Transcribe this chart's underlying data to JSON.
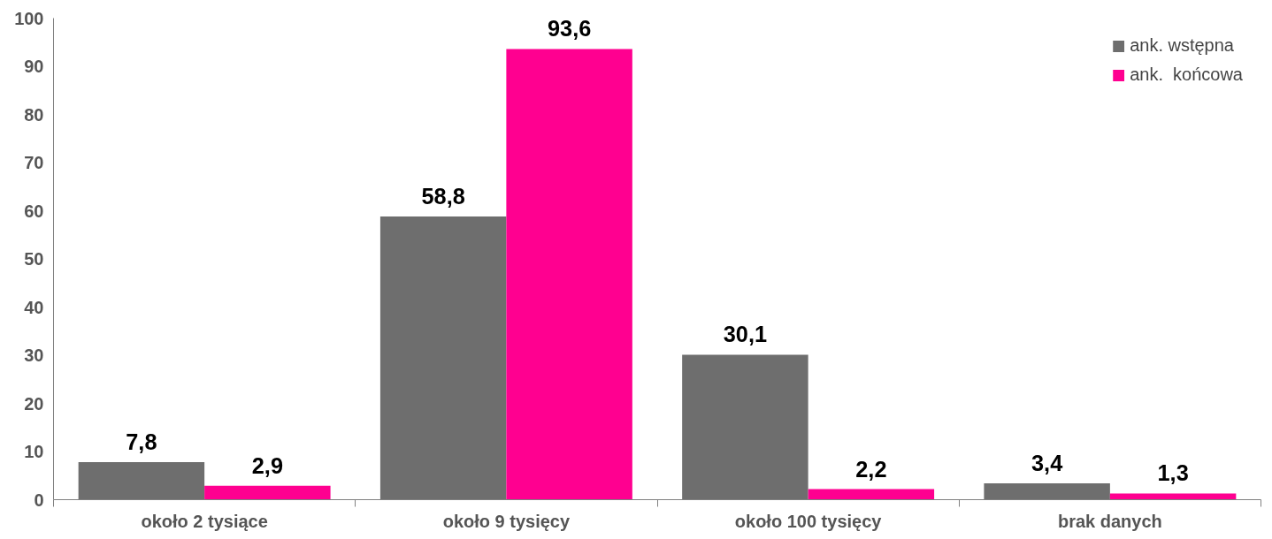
{
  "chart_data": {
    "type": "bar",
    "categories": [
      "około 2 tysiące",
      "około 9 tysięcy",
      "około 100 tysięcy",
      "brak danych"
    ],
    "series": [
      {
        "name": "ank. wstępna",
        "color": "#6e6e6e",
        "values": [
          7.8,
          58.8,
          30.1,
          3.4
        ],
        "value_labels": [
          "7,8",
          "58,8",
          "30,1",
          "3,4"
        ]
      },
      {
        "name": "ank.  końcowa",
        "color": "#ff0090",
        "values": [
          2.9,
          93.6,
          2.2,
          1.3
        ],
        "value_labels": [
          "2,9",
          "93,6",
          "2,2",
          "1,3"
        ]
      }
    ],
    "ylim": [
      0,
      100
    ],
    "yticks": [
      0,
      10,
      20,
      30,
      40,
      50,
      60,
      70,
      80,
      90,
      100
    ],
    "grid": false,
    "legend": "top right"
  }
}
